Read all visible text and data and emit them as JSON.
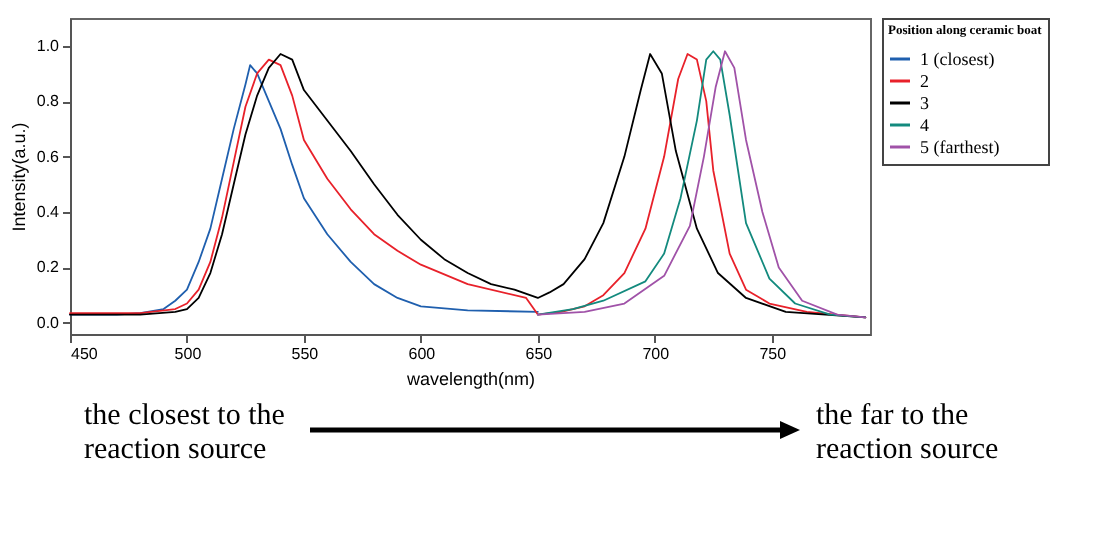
{
  "chart_data": {
    "type": "line",
    "xlabel": "wavelength(nm)",
    "ylabel": "Intensity(a.u.)",
    "legend_title": "Position along ceramic boat",
    "legend": "top right",
    "grid": false,
    "marker": "none",
    "line_style": "solid",
    "xlim": [
      450,
      792
    ],
    "xticks": [
      450,
      500,
      550,
      600,
      650,
      700,
      750
    ],
    "ylim": [
      -0.04,
      1.1
    ],
    "yticks": [
      {
        "value": 0,
        "label": "0.0"
      },
      {
        "value": 0.2,
        "label": "0.2"
      },
      {
        "value": 0.4,
        "label": "0.4"
      },
      {
        "value": 0.6,
        "label": "0.6"
      },
      {
        "value": 0.8,
        "label": "0.8"
      },
      {
        "value": 1,
        "label": "1.0"
      }
    ],
    "annotations": [
      "the closest to the reaction source",
      "the far to the reaction source"
    ],
    "series": [
      {
        "name": "1 (closest)",
        "color": "#1f5fae",
        "x": [
          450,
          470,
          480,
          490,
          495,
          500,
          505,
          510,
          515,
          520,
          525,
          527,
          530,
          535,
          540,
          545,
          550,
          560,
          570,
          580,
          590,
          600,
          620,
          650
        ],
        "values": [
          0.03,
          0.03,
          0.035,
          0.05,
          0.08,
          0.12,
          0.22,
          0.34,
          0.52,
          0.7,
          0.86,
          0.93,
          0.9,
          0.8,
          0.7,
          0.57,
          0.45,
          0.32,
          0.22,
          0.14,
          0.09,
          0.06,
          0.045,
          0.04
        ]
      },
      {
        "name": "2",
        "color": "#e8212a",
        "x": [
          450,
          480,
          495,
          500,
          505,
          510,
          515,
          520,
          525,
          530,
          535,
          540,
          545,
          550,
          560,
          570,
          580,
          590,
          600,
          620,
          645,
          650,
          660,
          670,
          678,
          687,
          696,
          704,
          710,
          714,
          718,
          722,
          725,
          732,
          739,
          749,
          765,
          790
        ],
        "values": [
          0.035,
          0.035,
          0.05,
          0.07,
          0.12,
          0.22,
          0.38,
          0.58,
          0.78,
          0.9,
          0.95,
          0.93,
          0.82,
          0.66,
          0.52,
          0.41,
          0.32,
          0.26,
          0.21,
          0.14,
          0.09,
          0.03,
          0.04,
          0.06,
          0.1,
          0.18,
          0.34,
          0.6,
          0.88,
          0.97,
          0.95,
          0.8,
          0.55,
          0.25,
          0.12,
          0.07,
          0.04,
          0.02
        ]
      },
      {
        "name": "3",
        "color": "#000000",
        "x": [
          450,
          480,
          495,
          500,
          505,
          510,
          515,
          520,
          525,
          530,
          535,
          540,
          545,
          550,
          560,
          570,
          580,
          590,
          600,
          610,
          620,
          630,
          640,
          650,
          655,
          661,
          670,
          678,
          687,
          694,
          698,
          703,
          709,
          718,
          727,
          739,
          756,
          790
        ],
        "values": [
          0.03,
          0.03,
          0.04,
          0.05,
          0.09,
          0.18,
          0.32,
          0.5,
          0.68,
          0.82,
          0.92,
          0.97,
          0.95,
          0.84,
          0.73,
          0.62,
          0.5,
          0.39,
          0.3,
          0.23,
          0.18,
          0.14,
          0.12,
          0.09,
          0.11,
          0.14,
          0.23,
          0.36,
          0.6,
          0.84,
          0.97,
          0.9,
          0.62,
          0.34,
          0.18,
          0.09,
          0.04,
          0.02
        ]
      },
      {
        "name": "4",
        "color": "#138a7e",
        "x": [
          650,
          665,
          678,
          696,
          704,
          711,
          718,
          722,
          725,
          728,
          732,
          739,
          749,
          760,
          775,
          790
        ],
        "values": [
          0.03,
          0.05,
          0.08,
          0.15,
          0.25,
          0.45,
          0.73,
          0.95,
          0.98,
          0.95,
          0.75,
          0.36,
          0.16,
          0.07,
          0.03,
          0.02
        ]
      },
      {
        "name": "5 (farthest)",
        "color": "#a052a8",
        "x": [
          650,
          670,
          687,
          704,
          715,
          721,
          726,
          730,
          734,
          739,
          746,
          753,
          763,
          778,
          790
        ],
        "values": [
          0.03,
          0.04,
          0.07,
          0.17,
          0.35,
          0.6,
          0.85,
          0.98,
          0.92,
          0.66,
          0.4,
          0.2,
          0.08,
          0.03,
          0.02
        ]
      }
    ]
  }
}
